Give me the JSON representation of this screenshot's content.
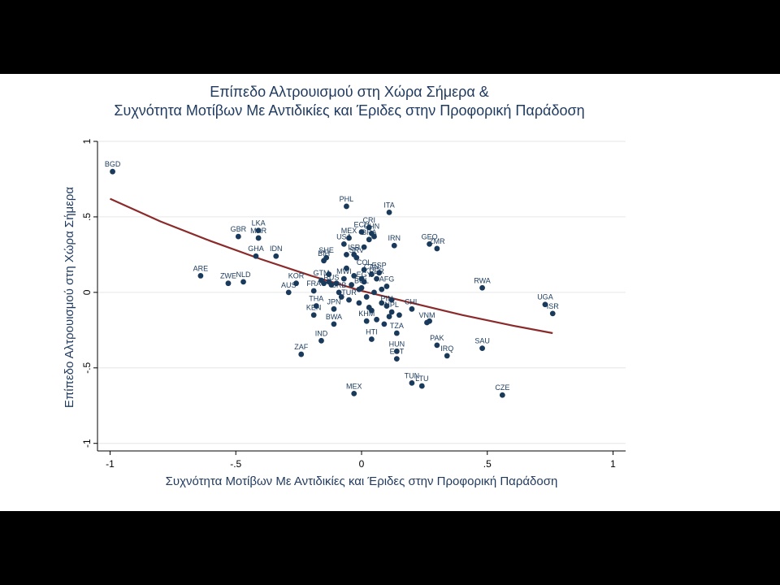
{
  "chart_data": {
    "type": "scatter",
    "title": "Επίπεδο Αλτρουισμού στη Χώρα Σήμερα &",
    "subtitle": "Συχνότητα Μοτίβων Με Αντιδικίες και Έριδες στην Προφορική Παράδοση",
    "xlabel": "Συχνότητα Μοτίβων Με Αντιδικίες και Έριδες στην Προφορική Παράδοση",
    "ylabel": "Επίπεδο Αλτρουισμού στη Χώρα Σήμερα",
    "xlim": [
      -1.05,
      1.05
    ],
    "ylim": [
      -1.05,
      1.0
    ],
    "xticks": [
      -1,
      -0.5,
      0,
      0.5,
      1
    ],
    "xtick_labels": [
      "-1",
      "-.5",
      "0",
      ".5",
      "1"
    ],
    "yticks": [
      -1,
      -0.5,
      0,
      0.5,
      1
    ],
    "ytick_labels": [
      "-1",
      "-.5",
      "0",
      ".5",
      "1"
    ],
    "grid": "horizontal",
    "colors": {
      "points": "#1a3a5c",
      "fit": "#8b2a2a",
      "grid": "#e6e6e6"
    },
    "points": [
      {
        "label": "BGD",
        "x": -0.99,
        "y": 0.8
      },
      {
        "label": "PHL",
        "x": -0.06,
        "y": 0.57
      },
      {
        "label": "ITA",
        "x": 0.11,
        "y": 0.53
      },
      {
        "label": "LKA",
        "x": -0.41,
        "y": 0.41
      },
      {
        "label": "MAR",
        "x": -0.41,
        "y": 0.36
      },
      {
        "label": "GBR",
        "x": -0.49,
        "y": 0.37
      },
      {
        "label": "CRI",
        "x": 0.03,
        "y": 0.43
      },
      {
        "label": "ECU",
        "x": 0.0,
        "y": 0.4
      },
      {
        "label": "CHN",
        "x": 0.04,
        "y": 0.39
      },
      {
        "label": "MEX",
        "x": -0.05,
        "y": 0.36
      },
      {
        "label": "BRA",
        "x": 0.03,
        "y": 0.35
      },
      {
        "label": "USA",
        "x": -0.07,
        "y": 0.32
      },
      {
        "label": "IRN",
        "x": 0.13,
        "y": 0.31
      },
      {
        "label": "GEO",
        "x": 0.27,
        "y": 0.32
      },
      {
        "label": "ZMR",
        "x": 0.3,
        "y": 0.29
      },
      {
        "label": "GHA",
        "x": -0.42,
        "y": 0.24
      },
      {
        "label": "IDN",
        "x": -0.34,
        "y": 0.24
      },
      {
        "label": "SHE",
        "x": -0.14,
        "y": 0.23
      },
      {
        "label": "BIH",
        "x": -0.15,
        "y": 0.21
      },
      {
        "label": "ISR",
        "x": -0.03,
        "y": 0.25
      },
      {
        "label": "SRV",
        "x": -0.02,
        "y": 0.23
      },
      {
        "label": "COL",
        "x": 0.01,
        "y": 0.15
      },
      {
        "label": "CAN",
        "x": 0.04,
        "y": 0.12
      },
      {
        "label": "ESP",
        "x": 0.07,
        "y": 0.13
      },
      {
        "label": "ARE",
        "x": -0.64,
        "y": 0.11
      },
      {
        "label": "ZWE",
        "x": -0.53,
        "y": 0.06
      },
      {
        "label": "NLD",
        "x": -0.47,
        "y": 0.07
      },
      {
        "label": "GTM",
        "x": -0.16,
        "y": 0.08
      },
      {
        "label": "MWI",
        "x": -0.07,
        "y": 0.09
      },
      {
        "label": "RUS",
        "x": -0.12,
        "y": 0.05
      },
      {
        "label": "EGY",
        "x": 0.01,
        "y": 0.07
      },
      {
        "label": "PER",
        "x": 0.06,
        "y": 0.09
      },
      {
        "label": "AFG",
        "x": 0.1,
        "y": 0.04
      },
      {
        "label": "KOR",
        "x": -0.26,
        "y": 0.06
      },
      {
        "label": "FRA",
        "x": -0.19,
        "y": 0.01
      },
      {
        "label": "AUS",
        "x": -0.29,
        "y": 0.0
      },
      {
        "label": "BOL",
        "x": 0.0,
        "y": 0.03
      },
      {
        "label": "SRB",
        "x": -0.09,
        "y": 0.0
      },
      {
        "label": "TUR",
        "x": -0.05,
        "y": -0.05
      },
      {
        "label": "UGA",
        "x": 0.73,
        "y": -0.08
      },
      {
        "label": "ISR",
        "x": 0.76,
        "y": -0.14
      },
      {
        "label": "RWA",
        "x": 0.48,
        "y": 0.03
      },
      {
        "label": "THA",
        "x": -0.18,
        "y": -0.09
      },
      {
        "label": "JPN",
        "x": -0.11,
        "y": -0.11
      },
      {
        "label": "KEN",
        "x": -0.19,
        "y": -0.15
      },
      {
        "label": "BWA",
        "x": -0.11,
        "y": -0.21
      },
      {
        "label": "CHL",
        "x": 0.2,
        "y": -0.11
      },
      {
        "label": "PIN",
        "x": 0.1,
        "y": -0.09
      },
      {
        "label": "NPL",
        "x": 0.12,
        "y": -0.13
      },
      {
        "label": "VNM",
        "x": 0.26,
        "y": -0.2
      },
      {
        "label": "KHM",
        "x": 0.02,
        "y": -0.19
      },
      {
        "label": "HTI",
        "x": 0.04,
        "y": -0.31
      },
      {
        "label": "TZA",
        "x": 0.14,
        "y": -0.27
      },
      {
        "label": "IND",
        "x": -0.16,
        "y": -0.32
      },
      {
        "label": "ZAF",
        "x": -0.24,
        "y": -0.41
      },
      {
        "label": "PAK",
        "x": 0.3,
        "y": -0.35
      },
      {
        "label": "IRQ",
        "x": 0.34,
        "y": -0.42
      },
      {
        "label": "SAU",
        "x": 0.48,
        "y": -0.37
      },
      {
        "label": "HUN",
        "x": 0.14,
        "y": -0.39
      },
      {
        "label": "EST",
        "x": 0.14,
        "y": -0.44
      },
      {
        "label": "TUN",
        "x": 0.2,
        "y": -0.6
      },
      {
        "label": "LTU",
        "x": 0.24,
        "y": -0.62
      },
      {
        "label": "MEX",
        "x": -0.03,
        "y": -0.67
      },
      {
        "label": "CZE",
        "x": 0.56,
        "y": -0.68
      }
    ],
    "unlabeled_points": [
      {
        "x": -0.13,
        "y": 0.07
      },
      {
        "x": -0.1,
        "y": 0.06
      },
      {
        "x": -0.04,
        "y": 0.05
      },
      {
        "x": -0.01,
        "y": 0.02
      },
      {
        "x": 0.02,
        "y": -0.03
      },
      {
        "x": 0.05,
        "y": 0.0
      },
      {
        "x": 0.08,
        "y": 0.02
      },
      {
        "x": -0.08,
        "y": -0.03
      },
      {
        "x": 0.03,
        "y": -0.1
      },
      {
        "x": 0.08,
        "y": -0.07
      },
      {
        "x": 0.11,
        "y": -0.16
      },
      {
        "x": 0.06,
        "y": -0.18
      },
      {
        "x": 0.09,
        "y": -0.21
      },
      {
        "x": 0.15,
        "y": -0.15
      },
      {
        "x": 0.27,
        "y": -0.19
      },
      {
        "x": -0.06,
        "y": 0.16
      },
      {
        "x": -0.03,
        "y": 0.11
      },
      {
        "x": 0.0,
        "y": 0.09
      },
      {
        "x": -0.13,
        "y": 0.12
      },
      {
        "x": -0.15,
        "y": 0.06
      },
      {
        "x": -0.01,
        "y": -0.07
      },
      {
        "x": 0.04,
        "y": -0.12
      },
      {
        "x": 0.12,
        "y": -0.05
      },
      {
        "x": -0.06,
        "y": 0.25
      },
      {
        "x": 0.01,
        "y": 0.3
      },
      {
        "x": 0.05,
        "y": 0.37
      }
    ],
    "fit": {
      "x": [
        -1.0,
        -0.8,
        -0.6,
        -0.4,
        -0.2,
        0.0,
        0.2,
        0.4,
        0.6,
        0.76
      ],
      "y": [
        0.62,
        0.47,
        0.34,
        0.22,
        0.11,
        0.01,
        -0.07,
        -0.15,
        -0.22,
        -0.27
      ]
    }
  }
}
